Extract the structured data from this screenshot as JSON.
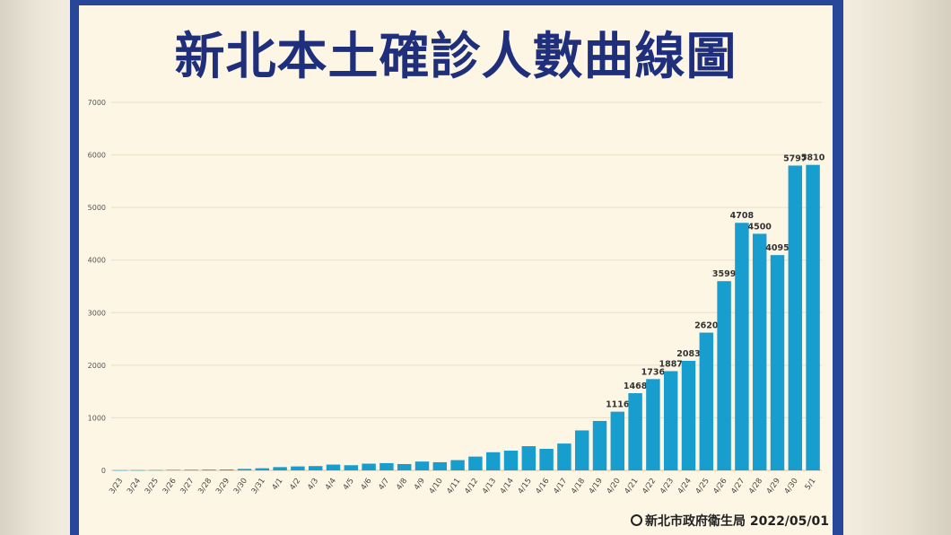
{
  "colors": {
    "bar": "#179ece",
    "title": "#1f2f7c",
    "frame": "#29479a",
    "panel": "#fdf6e4"
  },
  "footer": {
    "logo_icon": "seal-icon",
    "text": "新北市政府衛生局 2022/05/01"
  },
  "chart_data": {
    "type": "bar",
    "title": "新北本土確診人數曲線圖",
    "xlabel": "",
    "ylabel": "",
    "ylim": [
      0,
      7000
    ],
    "yticks": [
      0,
      1000,
      2000,
      3000,
      4000,
      5000,
      6000,
      7000
    ],
    "grid": true,
    "categories": [
      "3/23",
      "3/24",
      "3/25",
      "3/26",
      "3/27",
      "3/28",
      "3/29",
      "3/30",
      "3/31",
      "4/1",
      "4/2",
      "4/3",
      "4/4",
      "4/5",
      "4/6",
      "4/7",
      "4/8",
      "4/9",
      "4/10",
      "4/11",
      "4/12",
      "4/13",
      "4/14",
      "4/15",
      "4/16",
      "4/17",
      "4/18",
      "4/19",
      "4/20",
      "4/21",
      "4/22",
      "4/23",
      "4/24",
      "4/25",
      "4/26",
      "4/27",
      "4/28",
      "4/29",
      "4/30",
      "5/1"
    ],
    "values": [
      3,
      4,
      6,
      10,
      12,
      14,
      16,
      28,
      40,
      62,
      75,
      82,
      110,
      98,
      128,
      138,
      120,
      168,
      155,
      195,
      262,
      345,
      375,
      460,
      410,
      510,
      760,
      940,
      1116,
      1468,
      1736,
      1887,
      2083,
      2620,
      3599,
      4708,
      4500,
      4095,
      5797,
      5810
    ],
    "data_labels": [
      "",
      "",
      "",
      "",
      "",
      "",
      "",
      "",
      "",
      "",
      "",
      "",
      "",
      "",
      "",
      "",
      "",
      "",
      "",
      "",
      "",
      "",
      "",
      "",
      "",
      "",
      "",
      "",
      "1116",
      "1468",
      "1736",
      "1887",
      "2083",
      "2620",
      "3599",
      "4708",
      "4500",
      "4095",
      "5797",
      "5810"
    ]
  }
}
